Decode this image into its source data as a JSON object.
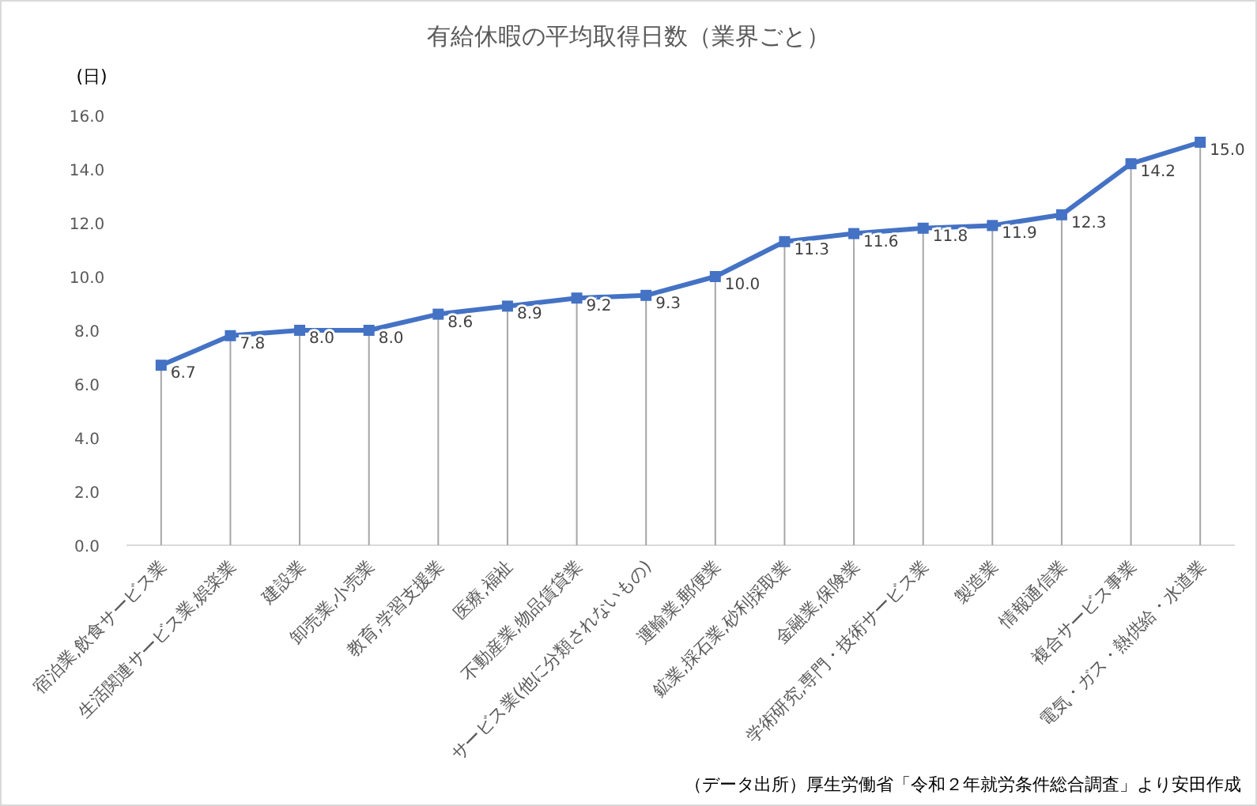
{
  "chart_data": {
    "type": "line",
    "title": "有給休暇の平均取得日数（業界ごと）",
    "ylabel": "(日)",
    "categories": [
      "宿泊業,飲食サービス業",
      "生活関連サービス業,娯楽業",
      "建設業",
      "卸売業,小売業",
      "教育,学習支援業",
      "医療,福祉",
      "不動産業,物品賃貸業",
      "サービス業(他に分類されないもの)",
      "運輸業,郵便業",
      "鉱業,採石業,砂利採取業",
      "金融業,保険業",
      "学術研究,専門・技術サービス業",
      "製造業",
      "情報通信業",
      "複合サービス事業",
      "電気・ガス・熱供給・水道業"
    ],
    "values": [
      6.7,
      7.8,
      8.0,
      8.0,
      8.6,
      8.9,
      9.2,
      9.3,
      10.0,
      11.3,
      11.6,
      11.8,
      11.9,
      12.3,
      14.2,
      15.0
    ],
    "value_labels": [
      "6.7",
      "7.8",
      "8.0",
      "8.0",
      "8.6",
      "8.9",
      "9.2",
      "9.3",
      "10.0",
      "11.3",
      "11.6",
      "11.8",
      "11.9",
      "12.3",
      "14.2",
      "15.0"
    ],
    "color": "#4472c4",
    "marker": "square",
    "grid": "x",
    "line_style": "solid",
    "ylim": [
      0,
      16
    ],
    "yticks": [
      {
        "value": 0,
        "label": "0.0"
      },
      {
        "value": 2,
        "label": "2.0"
      },
      {
        "value": 4,
        "label": "4.0"
      },
      {
        "value": 6,
        "label": "6.0"
      },
      {
        "value": 8,
        "label": "8.0"
      },
      {
        "value": 10,
        "label": "10.0"
      },
      {
        "value": 12,
        "label": "12.0"
      },
      {
        "value": 14,
        "label": "14.0"
      },
      {
        "value": 16,
        "label": "16.0"
      }
    ],
    "annotations": [
      "（データ出所）厚生労働省「令和２年就労条件総合調査」より安田作成"
    ]
  }
}
